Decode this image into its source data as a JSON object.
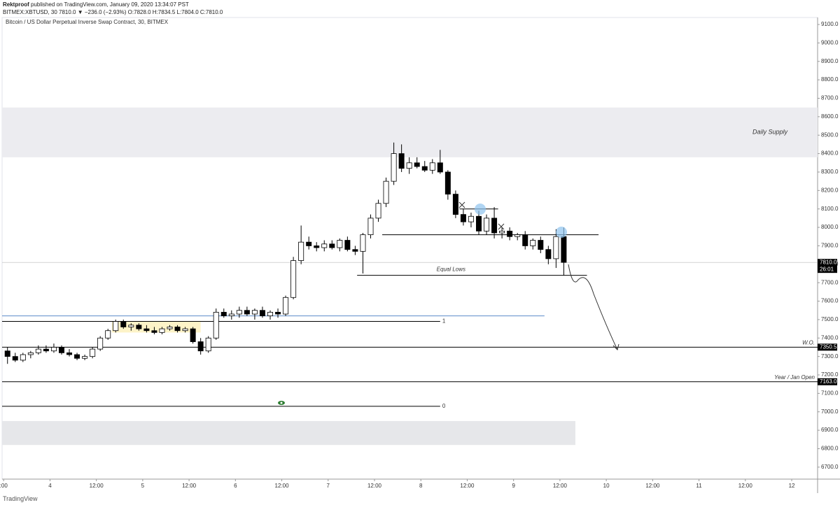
{
  "header": {
    "author": "Rektproof",
    "published": "published on TradingView.com, January 09, 2020 13:34:07 PST",
    "quote": "BITMEX:XBTUSD, 30 7810.0 ▼ −236.0 (−2.93%) O:7828.0 H:7834.5 L:7804.0 C:7810.0"
  },
  "footer": {
    "brand": "TradingView"
  },
  "chart_data": {
    "type": "candlestick",
    "title": "Bitcoin / US Dollar Perpetual Inverse Swap Contract, 30, BITMEX",
    "x": [
      -12,
      -10,
      -8,
      -6,
      -4,
      -2,
      0,
      2,
      4,
      6,
      8,
      10,
      12,
      14,
      16,
      18,
      20,
      22,
      24,
      26,
      28,
      30,
      32,
      34,
      36,
      38,
      40,
      42,
      44,
      46,
      48,
      50,
      52,
      54,
      56,
      58,
      60,
      62,
      64,
      66,
      68,
      70,
      72,
      74,
      76,
      78,
      80,
      82,
      84,
      86,
      88,
      90,
      92,
      94,
      96,
      98,
      100,
      102,
      104,
      106,
      108,
      110,
      112,
      114,
      116,
      118,
      120,
      122,
      124,
      126,
      128,
      130,
      132
    ],
    "open": [
      7330,
      7300,
      7280,
      7310,
      7320,
      7340,
      7330,
      7350,
      7320,
      7310,
      7290,
      7300,
      7340,
      7400,
      7440,
      7490,
      7460,
      7470,
      7450,
      7440,
      7430,
      7450,
      7460,
      7440,
      7450,
      7380,
      7330,
      7400,
      7540,
      7520,
      7530,
      7550,
      7530,
      7550,
      7520,
      7540,
      7530,
      7620,
      7820,
      7920,
      7900,
      7890,
      7910,
      7890,
      7930,
      7880,
      7870,
      7960,
      8050,
      8130,
      8250,
      8400,
      8320,
      8350,
      8330,
      8310,
      8350,
      8300,
      8180,
      8070,
      8030,
      8060,
      7980,
      8050,
      7970,
      7980,
      7950,
      7960,
      7900,
      7930,
      7880,
      7830,
      7950
    ],
    "high": [
      7350,
      7320,
      7320,
      7330,
      7360,
      7360,
      7370,
      7360,
      7340,
      7320,
      7310,
      7350,
      7410,
      7450,
      7500,
      7500,
      7480,
      7480,
      7470,
      7460,
      7460,
      7470,
      7470,
      7460,
      7460,
      7400,
      7410,
      7560,
      7560,
      7550,
      7570,
      7570,
      7560,
      7570,
      7550,
      7560,
      7630,
      7840,
      8010,
      7950,
      7920,
      7930,
      7930,
      7940,
      7950,
      7900,
      7970,
      8070,
      8150,
      8270,
      8460,
      8450,
      8380,
      8380,
      8360,
      8370,
      8420,
      8310,
      8200,
      8100,
      8080,
      8090,
      8070,
      8110,
      8000,
      8000,
      7970,
      7980,
      7940,
      7950,
      7900,
      7990,
      8000
    ],
    "low": [
      7260,
      7270,
      7270,
      7290,
      7310,
      7320,
      7320,
      7310,
      7300,
      7280,
      7280,
      7290,
      7330,
      7390,
      7430,
      7450,
      7440,
      7440,
      7430,
      7420,
      7420,
      7440,
      7430,
      7430,
      7370,
      7310,
      7320,
      7390,
      7510,
      7500,
      7510,
      7520,
      7500,
      7510,
      7500,
      7510,
      7520,
      7610,
      7800,
      7880,
      7870,
      7870,
      7880,
      7870,
      7870,
      7850,
      7750,
      7940,
      8030,
      8110,
      8230,
      8300,
      8290,
      8320,
      8300,
      8290,
      8290,
      8150,
      8050,
      8010,
      8000,
      7960,
      7960,
      7940,
      7940,
      7930,
      7930,
      7880,
      7880,
      7860,
      7800,
      7780,
      7740
    ],
    "close": [
      7300,
      7280,
      7310,
      7320,
      7340,
      7330,
      7350,
      7320,
      7310,
      7290,
      7300,
      7340,
      7400,
      7440,
      7490,
      7460,
      7470,
      7450,
      7440,
      7430,
      7450,
      7460,
      7440,
      7450,
      7380,
      7330,
      7400,
      7540,
      7520,
      7530,
      7550,
      7530,
      7550,
      7520,
      7540,
      7530,
      7620,
      7820,
      7920,
      7900,
      7890,
      7910,
      7890,
      7930,
      7880,
      7870,
      7960,
      8050,
      8130,
      8250,
      8400,
      8320,
      8350,
      8330,
      8310,
      8350,
      8300,
      8180,
      8070,
      8030,
      8060,
      7980,
      8050,
      7970,
      7980,
      7950,
      7960,
      7900,
      7930,
      7880,
      7830,
      7950,
      7810
    ],
    "up_color": "#ffffff",
    "down_color": "#000000",
    "xlim": [
      -12.4,
      198.7
    ],
    "xticks": [
      {
        "value": -12,
        "label": ":00"
      },
      {
        "value": 0,
        "label": "4"
      },
      {
        "value": 12,
        "label": "12:00"
      },
      {
        "value": 24,
        "label": "5"
      },
      {
        "value": 36,
        "label": "12:00"
      },
      {
        "value": 48,
        "label": "6"
      },
      {
        "value": 60,
        "label": "12:00"
      },
      {
        "value": 72,
        "label": "7"
      },
      {
        "value": 84,
        "label": "12:00"
      },
      {
        "value": 96,
        "label": "8"
      },
      {
        "value": 108,
        "label": "12:00"
      },
      {
        "value": 120,
        "label": "9"
      },
      {
        "value": 132,
        "label": "12:00"
      },
      {
        "value": 144,
        "label": "10"
      },
      {
        "value": 156,
        "label": "12:00"
      },
      {
        "value": 168,
        "label": "11"
      },
      {
        "value": 180,
        "label": "12:00"
      },
      {
        "value": 192,
        "label": "12"
      }
    ],
    "ylim": [
      6635,
      9138
    ],
    "yticks": [
      {
        "value": 9100,
        "label": "9100.0"
      },
      {
        "value": 9000,
        "label": "9000.0"
      },
      {
        "value": 8900,
        "label": "8900.0"
      },
      {
        "value": 8800,
        "label": "8800.0"
      },
      {
        "value": 8700,
        "label": "8700.0"
      },
      {
        "value": 8600,
        "label": "8600.0"
      },
      {
        "value": 8500,
        "label": "8500.0"
      },
      {
        "value": 8400,
        "label": "8400.0"
      },
      {
        "value": 8300,
        "label": "8300.0"
      },
      {
        "value": 8200,
        "label": "8200.0"
      },
      {
        "value": 8100,
        "label": "8100.0"
      },
      {
        "value": 8000,
        "label": "8000.0"
      },
      {
        "value": 7900,
        "label": "7900.0"
      },
      {
        "value": 7800,
        "label": "7800.0"
      },
      {
        "value": 7700,
        "label": "7700.0"
      },
      {
        "value": 7600,
        "label": "7600.0"
      },
      {
        "value": 7500,
        "label": "7500.0"
      },
      {
        "value": 7400,
        "label": "7400.0"
      },
      {
        "value": 7300,
        "label": "7300.0"
      },
      {
        "value": 7200,
        "label": "7200.0"
      },
      {
        "value": 7100,
        "label": "7100.0"
      },
      {
        "value": 7000,
        "label": "7000.0"
      },
      {
        "value": 6900,
        "label": "6900.0"
      },
      {
        "value": 6800,
        "label": "6800.0"
      },
      {
        "value": 6700,
        "label": "6700.0"
      }
    ],
    "zones": [
      {
        "label": "Daily Supply",
        "range": [
          8380,
          8650
        ],
        "x": [
          -12.4,
          198.7
        ],
        "color": "#ececf0"
      },
      {
        "range": [
          6820,
          6950
        ],
        "x": [
          -12.4,
          136
        ],
        "color": "#e6e7ea"
      },
      {
        "range": [
          7430,
          7490
        ],
        "x": [
          16,
          39
        ],
        "color": "#fdf3c8"
      }
    ],
    "lines": [
      {
        "value": 7490,
        "x": [
          -12.4,
          101
        ],
        "label": "1",
        "color": "#000000"
      },
      {
        "value": 7030,
        "x": [
          -12.4,
          101
        ],
        "label": "0",
        "color": "#000000"
      },
      {
        "value": 7520,
        "x": [
          -12.4,
          128
        ],
        "color": "#5b8bc9"
      },
      {
        "value": 7740,
        "x": [
          79.5,
          139
        ],
        "label": "Equal Lows",
        "color": "#000000"
      },
      {
        "value": 7960,
        "x": [
          86,
          142
        ],
        "color": "#000000"
      },
      {
        "value": 8100,
        "x": [
          106,
          116
        ],
        "color": "#000000"
      }
    ],
    "levels": [
      {
        "value": 7350.5,
        "tag": "7350.5",
        "label": "W.O."
      },
      {
        "value": 7163,
        "tag": "7163.0",
        "label": "Year / Jan Open"
      }
    ],
    "last": {
      "value": 7810,
      "tag": "7810.0",
      "countdown": "26:01"
    }
  }
}
